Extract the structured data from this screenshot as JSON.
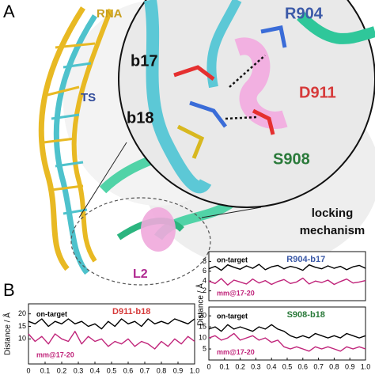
{
  "panel_a": {
    "label": "A",
    "rna": "RNA",
    "ts": "TS",
    "b17": "b17",
    "b18": "b18",
    "r904": "R904",
    "d911": "D911",
    "s908": "S908",
    "mechanism": [
      "locking",
      "mechanism"
    ],
    "l2": "L2"
  },
  "panel_b_label": "B",
  "chart_data": [
    {
      "type": "line",
      "title": "D911-b18",
      "title_color": "#d63a3a",
      "ylabel": "Distance / Å",
      "x": [
        0,
        0.04,
        0.08,
        0.12,
        0.16,
        0.2,
        0.24,
        0.28,
        0.32,
        0.36,
        0.4,
        0.44,
        0.48,
        0.52,
        0.56,
        0.6,
        0.64,
        0.68,
        0.72,
        0.76,
        0.8,
        0.84,
        0.88,
        0.92,
        0.96,
        1
      ],
      "xlim": [
        0,
        1
      ],
      "xticks": [
        0,
        0.1,
        0.2,
        0.3,
        0.4,
        0.5,
        0.6,
        0.7,
        0.8,
        0.9,
        {
          "value": 1,
          "label": "1.0"
        }
      ],
      "ylim": [
        0,
        24
      ],
      "yticks": [
        10,
        15,
        20
      ],
      "series": [
        {
          "name": "on-target",
          "color": "#000000",
          "values": [
            17,
            16,
            18,
            15,
            17,
            16,
            18,
            16,
            17,
            15,
            16,
            14,
            17,
            15,
            18,
            16,
            17,
            15,
            18,
            16,
            17,
            16,
            18,
            17,
            16,
            18
          ]
        },
        {
          "name": "mm@17-20",
          "color": "#c0247a",
          "values": [
            12,
            9,
            11,
            8,
            12,
            10,
            9,
            13,
            8,
            11,
            9,
            10,
            7,
            9,
            8,
            10,
            7,
            9,
            8,
            6,
            9,
            7,
            10,
            8,
            11,
            9
          ]
        }
      ]
    },
    {
      "type": "line",
      "title": "R904-b17",
      "title_color": "#3c5aa8",
      "ylabel": "Distance / Å",
      "x": [
        0,
        0.04,
        0.08,
        0.12,
        0.16,
        0.2,
        0.24,
        0.28,
        0.32,
        0.36,
        0.4,
        0.44,
        0.48,
        0.52,
        0.56,
        0.6,
        0.64,
        0.68,
        0.72,
        0.76,
        0.8,
        0.84,
        0.88,
        0.92,
        0.96,
        1
      ],
      "xlim": [
        0,
        1
      ],
      "ylim": [
        0,
        10
      ],
      "yticks": [
        2,
        4,
        6,
        8
      ],
      "series": [
        {
          "name": "on-target",
          "color": "#000000",
          "values": [
            6.5,
            7,
            6.2,
            7.3,
            6.8,
            6.4,
            7.1,
            6.6,
            7.4,
            6.3,
            6.9,
            7.2,
            6.5,
            7,
            6.7,
            6.2,
            7.3,
            6.8,
            6.5,
            7.1,
            6.6,
            7,
            6.3,
            6.9,
            7.2,
            6.6
          ]
        },
        {
          "name": "mm@17-20",
          "color": "#c0247a",
          "values": [
            4,
            3.5,
            4.5,
            3.2,
            4.2,
            3.8,
            3.4,
            4.4,
            3.6,
            4.1,
            3.3,
            3.9,
            4.3,
            3.5,
            3.8,
            4.6,
            3.4,
            4,
            3.7,
            4.2,
            3.3,
            3.9,
            4.4,
            3.6,
            3.8,
            4.1
          ]
        }
      ]
    },
    {
      "type": "line",
      "title": "S908-b18",
      "title_color": "#2a7a3a",
      "x": [
        0,
        0.04,
        0.08,
        0.12,
        0.16,
        0.2,
        0.24,
        0.28,
        0.32,
        0.36,
        0.4,
        0.44,
        0.48,
        0.52,
        0.56,
        0.6,
        0.64,
        0.68,
        0.72,
        0.76,
        0.8,
        0.84,
        0.88,
        0.92,
        0.96,
        1
      ],
      "xlim": [
        0,
        1
      ],
      "xticks": [
        0,
        0.1,
        0.2,
        0.3,
        0.4,
        0.5,
        0.6,
        0.7,
        0.8,
        0.9,
        {
          "value": 1,
          "label": "1.0"
        }
      ],
      "ylim": [
        0,
        24
      ],
      "yticks": [
        5,
        10,
        15,
        20
      ],
      "series": [
        {
          "name": "on-target",
          "color": "#000000",
          "values": [
            14,
            15,
            13,
            16,
            14,
            15,
            14,
            13,
            15,
            14,
            16,
            14,
            13,
            11,
            10,
            11,
            10,
            12,
            11,
            10,
            11,
            10,
            12,
            11,
            10,
            11
          ]
        },
        {
          "name": "mm@17-20",
          "color": "#c0247a",
          "values": [
            10,
            11,
            9,
            10,
            12,
            9,
            10,
            11,
            9,
            10,
            8,
            9,
            6,
            5,
            6,
            5,
            4,
            6,
            5,
            6,
            5,
            4,
            6,
            5,
            6,
            5
          ]
        }
      ]
    }
  ]
}
